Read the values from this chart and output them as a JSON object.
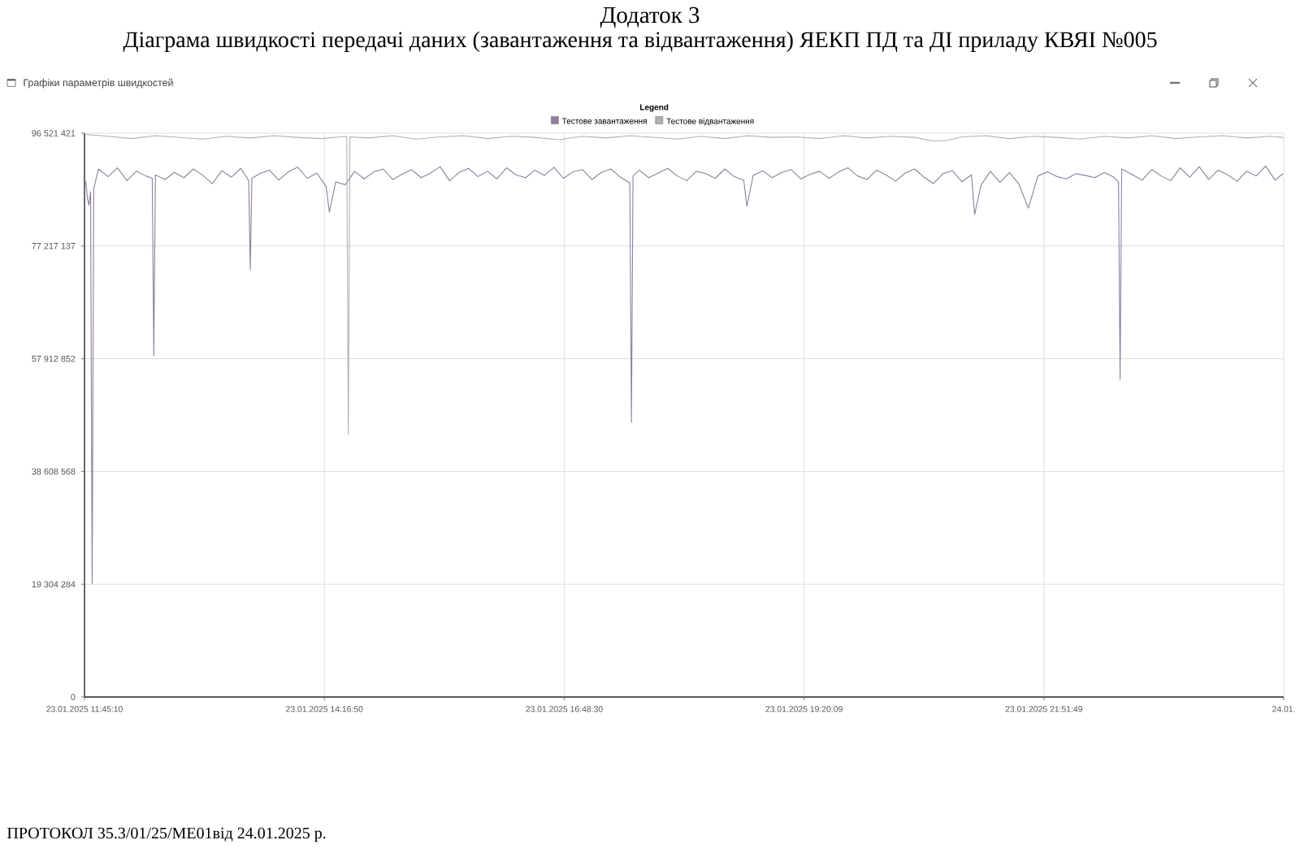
{
  "chart_data": {
    "type": "line",
    "title": "Додаток 3",
    "subtitle": "Діаграма швидкості передачі даних (завантаження та відвантаження) ЯЕКП ПД та ДІ приладу КВЯІ №005",
    "annotations": [
      "Графіки параметрів швидкостей",
      "ПРОТОКОЛ 35.3/01/25/МЕ01від 24.01.2025 р."
    ],
    "legend_title": "Legend",
    "legend": "top",
    "grid": true,
    "xlim": [
      "2025-01-23T11:45:10",
      "2025-01-24T00:23:29"
    ],
    "xticks": [
      {
        "value": "2025-01-23T11:45:10",
        "label": "23.01.2025 11:45:10"
      },
      {
        "value": "2025-01-23T14:16:50",
        "label": "23.01.2025 14:16:50"
      },
      {
        "value": "2025-01-23T16:48:30",
        "label": "23.01.2025 16:48:30"
      },
      {
        "value": "2025-01-23T19:20:09",
        "label": "23.01.2025 19:20:09"
      },
      {
        "value": "2025-01-23T21:51:49",
        "label": "23.01.2025 21:51:49"
      },
      {
        "value": "2025-01-24T00:23:29",
        "label": "24.01."
      }
    ],
    "ylim": [
      0,
      96521421
    ],
    "yticks": [
      0,
      {
        "value": 19304284,
        "label": "19 304 284"
      },
      {
        "value": 38608568,
        "label": "38 608 568"
      },
      {
        "value": 57912852,
        "label": "57 912 852"
      },
      {
        "value": 77217137,
        "label": "77 217 137"
      },
      {
        "value": 96521421,
        "label": "96 521 421"
      }
    ],
    "series": [
      {
        "name": "Тестове завантаження",
        "color": "#8e7f9e",
        "x": [
          "2025-01-23T11:46",
          "2025-01-23T11:47",
          "2025-01-23T11:48",
          "2025-01-23T11:49",
          "2025-01-23T11:50",
          "2025-01-23T11:51",
          "2025-01-23T11:54",
          "2025-01-23T12:00",
          "2025-01-23T12:06",
          "2025-01-23T12:12",
          "2025-01-23T12:18",
          "2025-01-23T12:24",
          "2025-01-23T12:28",
          "2025-01-23T12:29",
          "2025-01-23T12:30",
          "2025-01-23T12:36",
          "2025-01-23T12:42",
          "2025-01-23T12:48",
          "2025-01-23T12:54",
          "2025-01-23T13:00",
          "2025-01-23T13:06",
          "2025-01-23T13:12",
          "2025-01-23T13:18",
          "2025-01-23T13:24",
          "2025-01-23T13:29",
          "2025-01-23T13:30",
          "2025-01-23T13:31",
          "2025-01-23T13:36",
          "2025-01-23T13:42",
          "2025-01-23T13:48",
          "2025-01-23T13:54",
          "2025-01-23T14:00",
          "2025-01-23T14:06",
          "2025-01-23T14:12",
          "2025-01-23T14:18",
          "2025-01-23T14:20",
          "2025-01-23T14:24",
          "2025-01-23T14:30",
          "2025-01-23T14:36",
          "2025-01-23T14:42",
          "2025-01-23T14:48",
          "2025-01-23T14:54",
          "2025-01-23T15:00",
          "2025-01-23T15:06",
          "2025-01-23T15:12",
          "2025-01-23T15:18",
          "2025-01-23T15:24",
          "2025-01-23T15:30",
          "2025-01-23T15:36",
          "2025-01-23T15:42",
          "2025-01-23T15:48",
          "2025-01-23T15:54",
          "2025-01-23T16:00",
          "2025-01-23T16:06",
          "2025-01-23T16:12",
          "2025-01-23T16:18",
          "2025-01-23T16:24",
          "2025-01-23T16:30",
          "2025-01-23T16:36",
          "2025-01-23T16:42",
          "2025-01-23T16:48",
          "2025-01-23T16:54",
          "2025-01-23T17:00",
          "2025-01-23T17:06",
          "2025-01-23T17:12",
          "2025-01-23T17:18",
          "2025-01-23T17:24",
          "2025-01-23T17:30",
          "2025-01-23T17:31",
          "2025-01-23T17:32",
          "2025-01-23T17:36",
          "2025-01-23T17:42",
          "2025-01-23T17:48",
          "2025-01-23T17:54",
          "2025-01-23T18:00",
          "2025-01-23T18:06",
          "2025-01-23T18:12",
          "2025-01-23T18:18",
          "2025-01-23T18:24",
          "2025-01-23T18:30",
          "2025-01-23T18:36",
          "2025-01-23T18:42",
          "2025-01-23T18:44",
          "2025-01-23T18:48",
          "2025-01-23T18:54",
          "2025-01-23T19:00",
          "2025-01-23T19:06",
          "2025-01-23T19:12",
          "2025-01-23T19:18",
          "2025-01-23T19:24",
          "2025-01-23T19:30",
          "2025-01-23T19:36",
          "2025-01-23T19:42",
          "2025-01-23T19:48",
          "2025-01-23T19:54",
          "2025-01-23T20:00",
          "2025-01-23T20:06",
          "2025-01-23T20:12",
          "2025-01-23T20:18",
          "2025-01-23T20:24",
          "2025-01-23T20:30",
          "2025-01-23T20:36",
          "2025-01-23T20:42",
          "2025-01-23T20:48",
          "2025-01-23T20:54",
          "2025-01-23T21:00",
          "2025-01-23T21:06",
          "2025-01-23T21:08",
          "2025-01-23T21:12",
          "2025-01-23T21:18",
          "2025-01-23T21:24",
          "2025-01-23T21:30",
          "2025-01-23T21:36",
          "2025-01-23T21:42",
          "2025-01-23T21:48",
          "2025-01-23T21:54",
          "2025-01-23T22:00",
          "2025-01-23T22:06",
          "2025-01-23T22:12",
          "2025-01-23T22:18",
          "2025-01-23T22:24",
          "2025-01-23T22:30",
          "2025-01-23T22:36",
          "2025-01-23T22:39",
          "2025-01-23T22:40",
          "2025-01-23T22:41",
          "2025-01-23T22:48",
          "2025-01-23T22:54",
          "2025-01-23T23:00",
          "2025-01-23T23:06",
          "2025-01-23T23:12",
          "2025-01-23T23:18",
          "2025-01-23T23:24",
          "2025-01-23T23:30",
          "2025-01-23T23:36",
          "2025-01-23T23:42",
          "2025-01-23T23:48",
          "2025-01-23T23:54",
          "2025-01-24T00:00",
          "2025-01-24T00:06",
          "2025-01-24T00:12",
          "2025-01-24T00:18",
          "2025-01-24T00:23"
        ],
        "values": [
          88300000,
          85400000,
          84200000,
          86500000,
          19400000,
          87000000,
          90400000,
          89100000,
          90600000,
          88400000,
          90000000,
          89200000,
          88800000,
          58400000,
          89400000,
          88600000,
          89800000,
          88900000,
          90400000,
          89300000,
          87900000,
          90100000,
          89000000,
          90500000,
          88400000,
          73200000,
          88800000,
          89600000,
          90200000,
          88500000,
          89900000,
          90700000,
          88800000,
          89700000,
          87400000,
          83000000,
          88200000,
          87700000,
          90000000,
          88700000,
          89900000,
          90400000,
          88600000,
          89500000,
          90300000,
          88900000,
          89700000,
          90800000,
          88400000,
          89800000,
          90500000,
          89100000,
          90000000,
          88700000,
          90600000,
          89400000,
          88900000,
          90200000,
          89300000,
          90700000,
          88800000,
          89900000,
          90300000,
          88600000,
          89800000,
          90400000,
          89000000,
          88000000,
          47000000,
          89200000,
          90200000,
          88900000,
          89700000,
          90500000,
          89200000,
          88400000,
          90000000,
          89600000,
          88800000,
          90400000,
          89100000,
          88500000,
          84000000,
          89300000,
          90100000,
          88900000,
          89800000,
          90300000,
          88700000,
          89500000,
          90000000,
          88800000,
          89900000,
          90600000,
          89200000,
          88600000,
          90200000,
          89400000,
          88300000,
          89700000,
          90400000,
          89000000,
          87900000,
          89600000,
          90100000,
          88200000,
          89400000,
          82600000,
          87600000,
          90000000,
          88100000,
          89800000,
          87800000,
          83700000,
          89200000,
          89900000,
          89100000,
          88700000,
          89600000,
          89300000,
          88900000,
          89800000,
          89000000,
          88200000,
          54400000,
          90400000,
          89400000,
          88500000,
          90300000,
          89200000,
          88400000,
          90600000,
          89000000,
          90800000,
          88600000,
          90200000,
          89400000,
          88300000,
          90000000,
          89200000,
          90900000,
          88500000,
          89600000
        ]
      },
      {
        "name": "Тестове відвантаження",
        "color": "#b0b0b0",
        "x": [
          "2025-01-23T11:46",
          "2025-01-23T12:00",
          "2025-01-23T12:15",
          "2025-01-23T12:30",
          "2025-01-23T12:45",
          "2025-01-23T13:00",
          "2025-01-23T13:15",
          "2025-01-23T13:30",
          "2025-01-23T13:45",
          "2025-01-23T14:00",
          "2025-01-23T14:15",
          "2025-01-23T14:31",
          "2025-01-23T14:32",
          "2025-01-23T14:33",
          "2025-01-23T14:45",
          "2025-01-23T15:00",
          "2025-01-23T15:15",
          "2025-01-23T15:30",
          "2025-01-23T15:45",
          "2025-01-23T16:00",
          "2025-01-23T16:15",
          "2025-01-23T16:30",
          "2025-01-23T16:45",
          "2025-01-23T17:00",
          "2025-01-23T17:15",
          "2025-01-23T17:30",
          "2025-01-23T17:45",
          "2025-01-23T18:00",
          "2025-01-23T18:15",
          "2025-01-23T18:30",
          "2025-01-23T18:45",
          "2025-01-23T19:00",
          "2025-01-23T19:15",
          "2025-01-23T19:30",
          "2025-01-23T19:45",
          "2025-01-23T20:00",
          "2025-01-23T20:15",
          "2025-01-23T20:30",
          "2025-01-23T20:42",
          "2025-01-23T20:51",
          "2025-01-23T21:00",
          "2025-01-23T21:15",
          "2025-01-23T21:30",
          "2025-01-23T21:45",
          "2025-01-23T22:00",
          "2025-01-23T22:15",
          "2025-01-23T22:30",
          "2025-01-23T22:45",
          "2025-01-23T23:00",
          "2025-01-23T23:15",
          "2025-01-23T23:30",
          "2025-01-23T23:45",
          "2025-01-24T00:00",
          "2025-01-24T00:15",
          "2025-01-24T00:23"
        ],
        "values": [
          96300000,
          96000000,
          95600000,
          96100000,
          95800000,
          95500000,
          96000000,
          95700000,
          96100000,
          95800000,
          95600000,
          96000000,
          45000000,
          95900000,
          95700000,
          96100000,
          95500000,
          95900000,
          96100000,
          95600000,
          96000000,
          95800000,
          95400000,
          96000000,
          95700000,
          96100000,
          95800000,
          95500000,
          96000000,
          95600000,
          96100000,
          95800000,
          95900000,
          95600000,
          96100000,
          95700000,
          96000000,
          95800000,
          95200000,
          95300000,
          95900000,
          96100000,
          95600000,
          96000000,
          95800000,
          95500000,
          96000000,
          95700000,
          96100000,
          95600000,
          95900000,
          96100000,
          95700000,
          96000000,
          95800000
        ]
      }
    ]
  }
}
